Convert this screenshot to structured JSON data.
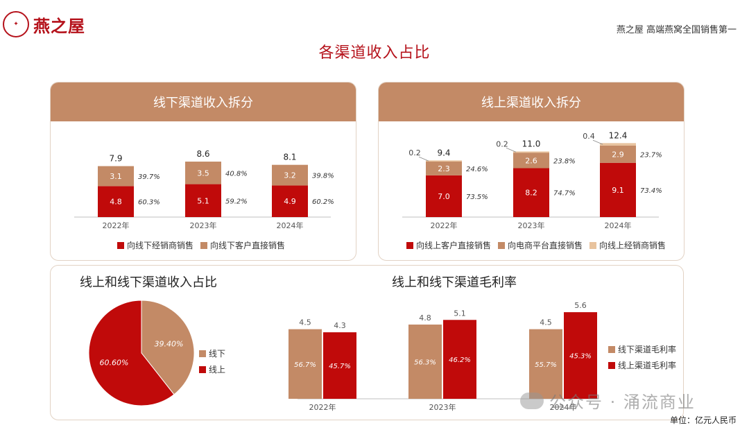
{
  "header": {
    "brand": "燕之屋",
    "slogan": "燕之屋 高端燕窝全国销售第一",
    "page_title": "各渠道收入占比",
    "unit": "单位：亿元人民币"
  },
  "colors": {
    "red": "#c00a0a",
    "tan": "#c38a66",
    "light": "#e8c39e"
  },
  "watermark": "公众号 · 涌流商业",
  "chart_data": [
    {
      "type": "bar",
      "title": "线下渠道收入拆分",
      "stacked": true,
      "categories": [
        "2022年",
        "2023年",
        "2024年"
      ],
      "totals": [
        "7.9",
        "8.6",
        "8.1"
      ],
      "series": [
        {
          "name": "向线下经销商销售",
          "color": "#c00a0a",
          "values": [
            4.8,
            5.1,
            4.9
          ],
          "labels": [
            "4.8",
            "5.1",
            "4.9"
          ],
          "pct": [
            "60.3%",
            "59.2%",
            "60.2%"
          ]
        },
        {
          "name": "向线下客户直接销售",
          "color": "#c38a66",
          "values": [
            3.1,
            3.5,
            3.2
          ],
          "labels": [
            "3.1",
            "3.5",
            "3.2"
          ],
          "pct": [
            "39.7%",
            "40.8%",
            "39.8%"
          ]
        }
      ]
    },
    {
      "type": "bar",
      "title": "线上渠道收入拆分",
      "stacked": true,
      "categories": [
        "2022年",
        "2023年",
        "2024年"
      ],
      "totals": [
        "9.4",
        "11.0",
        "12.4"
      ],
      "series": [
        {
          "name": "向线上客户直接销售",
          "color": "#c00a0a",
          "values": [
            7.0,
            8.2,
            9.1
          ],
          "labels": [
            "7.0",
            "8.2",
            "9.1"
          ],
          "pct": [
            "73.5%",
            "74.7%",
            "73.4%"
          ]
        },
        {
          "name": "向电商平台直接销售",
          "color": "#c38a66",
          "values": [
            2.3,
            2.6,
            2.9
          ],
          "labels": [
            "2.3",
            "2.6",
            "2.9"
          ],
          "pct": [
            "24.6%",
            "23.8%",
            "23.7%"
          ]
        },
        {
          "name": "向线上经销商销售",
          "color": "#e8c39e",
          "values": [
            0.2,
            0.2,
            0.4
          ],
          "labels": [
            "0.2",
            "0.2",
            "0.4"
          ],
          "pct": [
            "",
            "",
            ""
          ]
        }
      ]
    },
    {
      "type": "pie",
      "title": "线上和线下渠道收入占比",
      "slices": [
        {
          "name": "线下",
          "value": 39.4,
          "label": "39.40%",
          "color": "#c38a66"
        },
        {
          "name": "线上",
          "value": 60.6,
          "label": "60.60%",
          "color": "#c00a0a"
        }
      ]
    },
    {
      "type": "bar",
      "title": "线上和线下渠道毛利率",
      "categories": [
        "2022年",
        "2023年",
        "2024年"
      ],
      "series": [
        {
          "name": "线下渠道毛利率",
          "color": "#c38a66",
          "values": [
            4.5,
            4.8,
            4.5
          ],
          "labels": [
            "4.5",
            "4.8",
            "4.5"
          ],
          "inner": [
            "56.7%",
            "56.3%",
            "55.7%"
          ]
        },
        {
          "name": "线上渠道毛利率",
          "color": "#c00a0a",
          "values": [
            4.3,
            5.1,
            5.6
          ],
          "labels": [
            "4.3",
            "5.1",
            "5.6"
          ],
          "inner": [
            "45.7%",
            "46.2%",
            "45.3%"
          ]
        }
      ]
    }
  ]
}
